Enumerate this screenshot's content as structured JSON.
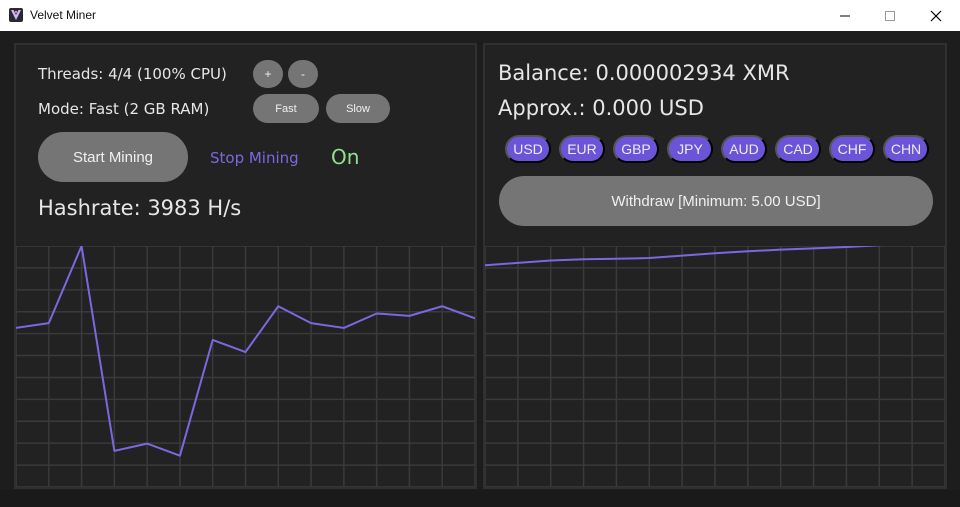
{
  "window": {
    "title": "Velvet Miner"
  },
  "mining": {
    "threads_label": "Threads: 4/4 (100% CPU)",
    "thread_plus": "+",
    "thread_minus": "-",
    "mode_label": "Mode: Fast (2 GB RAM)",
    "fast_label": "Fast",
    "slow_label": "Slow",
    "start_label": "Start Mining",
    "stop_label": "Stop Mining",
    "status": "On",
    "hashrate_label": "Hashrate: 3983 H/s"
  },
  "wallet": {
    "balance_label": "Balance: 0.000002934 XMR",
    "approx_label": "Approx.: 0.000 USD",
    "currencies": [
      "USD",
      "EUR",
      "GBP",
      "JPY",
      "AUD",
      "CAD",
      "CHF",
      "CHN"
    ],
    "withdraw_label": "Withdraw [Minimum: 5.00 USD]"
  },
  "colors": {
    "accent": "#7b68e0",
    "status_on": "#8fe08f",
    "button_gray": "#757575",
    "grid": "#3a3a3a"
  },
  "chart_data": [
    {
      "type": "line",
      "title": "",
      "series": [
        {
          "name": "hashrate",
          "values": [
            66,
            68,
            100,
            15,
            18,
            13,
            61,
            56,
            75,
            68,
            66,
            72,
            71,
            75,
            70
          ]
        }
      ],
      "ylim": [
        0,
        100
      ]
    },
    {
      "type": "line",
      "title": "",
      "series": [
        {
          "name": "balance",
          "values": [
            92,
            93,
            94,
            94.5,
            94.7,
            95,
            96,
            97,
            97.8,
            98.5,
            99,
            99.6,
            100.3,
            101.1,
            101.8
          ]
        }
      ],
      "ylim": [
        0,
        100
      ]
    }
  ]
}
